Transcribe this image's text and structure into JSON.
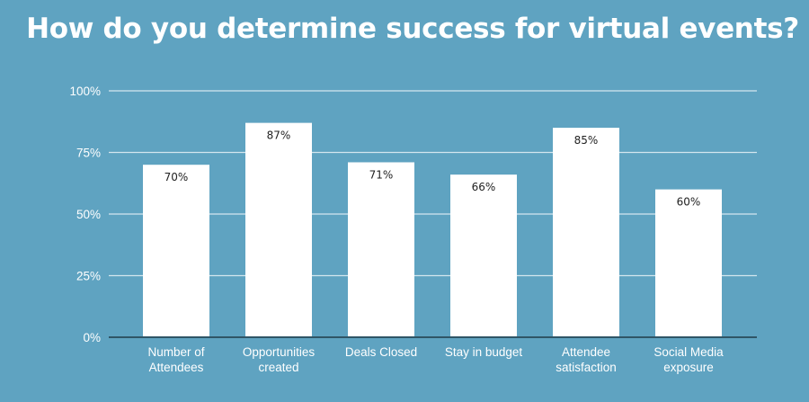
{
  "chart_data": {
    "type": "bar",
    "title": "How do you determine success for virtual events?",
    "categories": [
      [
        "Number of",
        "Attendees"
      ],
      [
        "Opportunities",
        "created"
      ],
      [
        "Deals Closed"
      ],
      [
        "Stay in budget"
      ],
      [
        "Attendee",
        "satisfaction"
      ],
      [
        "Social Media",
        "exposure"
      ]
    ],
    "values": [
      70,
      87,
      71,
      66,
      85,
      60
    ],
    "value_labels": [
      "70%",
      "87%",
      "71%",
      "66%",
      "85%",
      "60%"
    ],
    "ylim": [
      0,
      100
    ],
    "yticks": [
      0,
      25,
      50,
      75,
      100
    ],
    "ytick_labels": [
      "0%",
      "25%",
      "50%",
      "75%",
      "100%"
    ],
    "xlabel": "",
    "ylabel": "",
    "grid": true,
    "legend": "none",
    "colors": {
      "background": "#5fa3c1",
      "bar": "#ffffff",
      "gridline": "#d3e6ef",
      "axis": "#2f5566",
      "text": "#ffffff",
      "label": "#222222"
    }
  }
}
